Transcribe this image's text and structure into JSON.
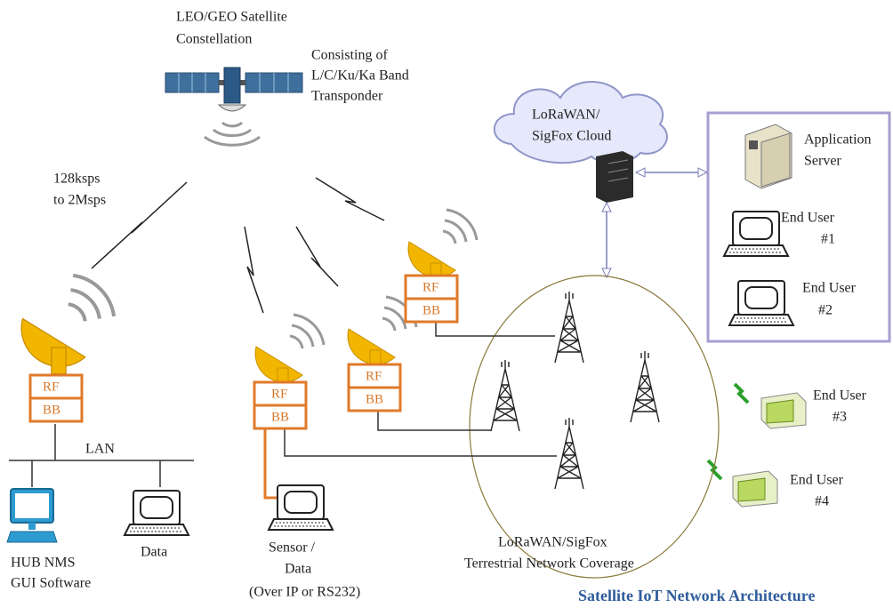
{
  "satellite": {
    "label": [
      "LEO/GEO Satellite",
      "Constellation"
    ],
    "description": [
      "Consisting of",
      "L/C/Ku/Ka Band",
      "Transponder"
    ]
  },
  "link_rate": [
    "128ksps",
    "to 2Msps"
  ],
  "cloud": {
    "label": [
      "LoRaWAN/",
      "SigFox Cloud"
    ]
  },
  "application_server": {
    "label": [
      "Application",
      "Server"
    ]
  },
  "end_users": [
    {
      "label": [
        "End User",
        "#1"
      ]
    },
    {
      "label": [
        "End User",
        "#2"
      ]
    },
    {
      "label": [
        "End User",
        "#3"
      ]
    },
    {
      "label": [
        "End User",
        "#4"
      ]
    }
  ],
  "terminals": [
    {
      "rf": "RF",
      "bb": "BB"
    },
    {
      "rf": "RF",
      "bb": "BB"
    },
    {
      "rf": "RF",
      "bb": "BB"
    },
    {
      "rf": "RF",
      "bb": "BB"
    }
  ],
  "lan": "LAN",
  "hub_nms": {
    "label": [
      "HUB NMS",
      "GUI Software"
    ]
  },
  "data_terminal": {
    "label": "Data"
  },
  "sensor": {
    "label": [
      "Sensor /",
      "Data",
      "(Over IP or RS232)"
    ]
  },
  "coverage": {
    "label": [
      "LoRaWAN/SigFox",
      "Terrestrial Network Coverage"
    ]
  },
  "caption": "Satellite IoT Network Architecture"
}
